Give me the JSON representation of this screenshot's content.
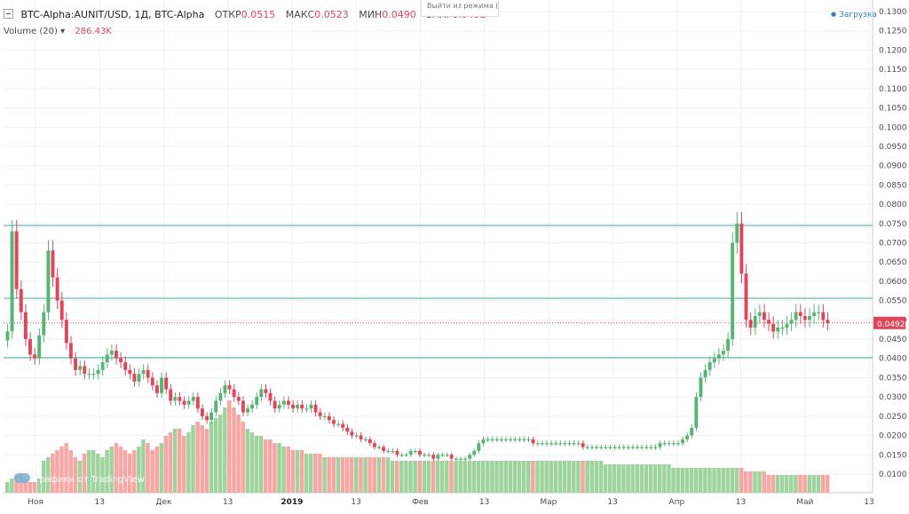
{
  "header": {
    "symbol": "BTC-Alpha:AUNIT/USD, 1Д, BTC-Alpha",
    "open_label": "ОТКР",
    "open_value": "0.0515",
    "high_label": "МАКС",
    "high_value": "0.0523",
    "low_label": "МИН",
    "low_value": "0.0490",
    "close_label": "ЗАКР",
    "close_value": "0.0492"
  },
  "volume_header": {
    "label": "Volume (20)",
    "value": "286.43K"
  },
  "tooltip_text": "Выйти из режима (ESC)",
  "loading_text": "Загрузка",
  "watermark_text": "Графики от TradingView",
  "price_badge": "0.0492",
  "colors": {
    "up": "#58b475",
    "down": "#e0455a",
    "vol_up": "#9fd39d",
    "vol_down": "#f7a6a3",
    "hline": "#5fbcb3",
    "grid": "#eef1f4"
  },
  "chart_data": {
    "type": "candlestick",
    "y_axis_ticks": [
      "0.0100",
      "0.0150",
      "0.0200",
      "0.0250",
      "0.0300",
      "0.0350",
      "0.0400",
      "0.0450",
      "0.0500",
      "0.0550",
      "0.0600",
      "0.0650",
      "0.0700",
      "0.0750",
      "0.0800",
      "0.0850",
      "0.0900",
      "0.0950",
      "0.1000",
      "0.1050",
      "0.1100",
      "0.1150",
      "0.1200",
      "0.1250",
      "0.1300"
    ],
    "ylim": [
      0.007,
      0.133
    ],
    "x_axis_ticks": [
      "Ноя",
      "13",
      "Дек",
      "13",
      "2019",
      "13",
      "Фев",
      "13",
      "Мар",
      "13",
      "Апр",
      "13",
      "Май",
      "13"
    ],
    "horizontal_lines": [
      0.0745,
      0.0556,
      0.0402
    ],
    "last_price": 0.0492,
    "candles_count": 182,
    "close_series": [
      0.047,
      0.073,
      0.058,
      0.052,
      0.045,
      0.041,
      0.04,
      0.046,
      0.052,
      0.068,
      0.061,
      0.055,
      0.05,
      0.044,
      0.04,
      0.037,
      0.038,
      0.036,
      0.036,
      0.036,
      0.037,
      0.039,
      0.041,
      0.042,
      0.04,
      0.039,
      0.037,
      0.036,
      0.034,
      0.036,
      0.037,
      0.035,
      0.033,
      0.031,
      0.035,
      0.032,
      0.029,
      0.03,
      0.029,
      0.028,
      0.029,
      0.03,
      0.027,
      0.025,
      0.024,
      0.026,
      0.029,
      0.031,
      0.033,
      0.032,
      0.03,
      0.029,
      0.026,
      0.027,
      0.028,
      0.03,
      0.032,
      0.031,
      0.029,
      0.027,
      0.028,
      0.029,
      0.028,
      0.027,
      0.028,
      0.027,
      0.027,
      0.028,
      0.026,
      0.025,
      0.025,
      0.024,
      0.023,
      0.023,
      0.022,
      0.021,
      0.02,
      0.02,
      0.019,
      0.019,
      0.018,
      0.017,
      0.017,
      0.016,
      0.016,
      0.016,
      0.015,
      0.015,
      0.015,
      0.016,
      0.016,
      0.015,
      0.015,
      0.015,
      0.014,
      0.015,
      0.015,
      0.015,
      0.014,
      0.014,
      0.014,
      0.014,
      0.015,
      0.016,
      0.018,
      0.019,
      0.019,
      0.019,
      0.019,
      0.019,
      0.019,
      0.019,
      0.019,
      0.019,
      0.019,
      0.019,
      0.018,
      0.018,
      0.018,
      0.018,
      0.018,
      0.018,
      0.018,
      0.018,
      0.018,
      0.018,
      0.018,
      0.017,
      0.017,
      0.017,
      0.017,
      0.017,
      0.017,
      0.017,
      0.017,
      0.017,
      0.017,
      0.017,
      0.017,
      0.017,
      0.017,
      0.017,
      0.017,
      0.017,
      0.018,
      0.018,
      0.018,
      0.018,
      0.018,
      0.019,
      0.02,
      0.022,
      0.03,
      0.035,
      0.037,
      0.039,
      0.04,
      0.041,
      0.042,
      0.045,
      0.07,
      0.075,
      0.062,
      0.05,
      0.048,
      0.051,
      0.052,
      0.05,
      0.049,
      0.047,
      0.048,
      0.048,
      0.049,
      0.05,
      0.052,
      0.051,
      0.05,
      0.051,
      0.052,
      0.052,
      0.05,
      0.0492
    ],
    "volume_series": [
      3,
      4,
      5,
      5,
      4,
      3,
      3,
      4,
      9,
      10,
      11,
      12,
      13,
      14,
      12,
      10,
      9,
      11,
      12,
      12,
      11,
      10,
      12,
      13,
      14,
      13,
      12,
      11,
      12,
      13,
      15,
      14,
      12,
      13,
      14,
      16,
      17,
      18,
      18,
      16,
      17,
      19,
      20,
      19,
      18,
      20,
      21,
      22,
      24,
      26,
      24,
      22,
      20,
      18,
      17,
      16,
      16,
      15,
      15,
      14,
      14,
      13,
      13,
      12,
      12,
      12,
      11,
      11,
      11,
      11,
      10,
      10,
      10,
      10,
      10,
      10,
      10,
      10,
      10,
      10,
      10,
      10,
      10,
      10,
      10,
      9,
      9,
      9,
      9,
      9,
      9,
      9,
      9,
      9,
      9,
      9,
      9,
      9,
      9,
      9,
      9,
      9,
      9,
      9,
      9,
      9,
      9,
      9,
      9,
      9,
      9,
      9,
      9,
      9,
      9,
      9,
      9,
      9,
      9,
      9,
      9,
      9,
      9,
      9,
      9,
      9,
      9,
      9,
      9,
      9,
      9,
      9,
      8,
      8,
      8,
      8,
      8,
      8,
      8,
      8,
      8,
      8,
      8,
      8,
      8,
      8,
      8,
      7,
      7,
      7,
      7,
      7,
      7,
      7,
      7,
      7,
      7,
      7,
      7,
      7,
      7,
      7,
      7,
      6,
      6,
      6,
      6,
      6,
      5,
      5,
      5,
      5,
      5,
      5,
      5,
      5,
      5,
      5,
      5,
      5,
      5,
      5
    ]
  }
}
